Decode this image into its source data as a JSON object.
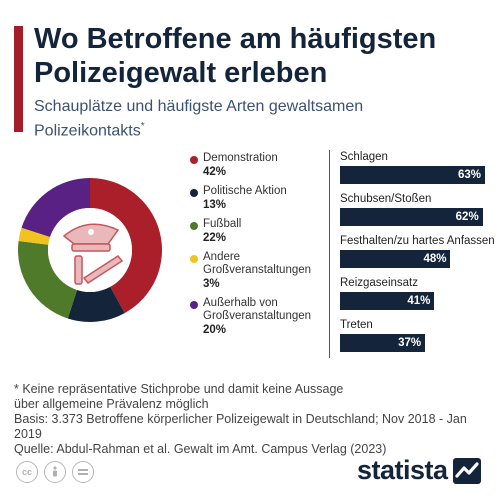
{
  "header": {
    "title": "Wo Betroffene am häufigsten Polizeigewalt erleben",
    "subtitle": "Schauplätze und häufigste Arten gewaltsamen Polizeikontakts",
    "subtitle_mark": "*"
  },
  "colors": {
    "accent": "#a41d2a",
    "navy": "#14243b",
    "demonstration": "#ab1f2b",
    "politische_aktion": "#14243b",
    "fussball": "#4e7a2a",
    "andere": "#f2c31f",
    "ausserhalb": "#5a2184",
    "icon": "#e9b8ba",
    "icon_stroke": "#c4575d"
  },
  "chart_data": [
    {
      "type": "pie",
      "style": "donut",
      "center_icon": "police-cap-baton-icon",
      "categories": [
        "Demonstration",
        "Politische Aktion",
        "Fußball",
        "Andere\nGroßveranstaltungen",
        "Außerhalb von\nGroßveranstaltungen"
      ],
      "values": [
        42,
        13,
        22,
        3,
        20
      ],
      "value_labels": [
        "42%",
        "13%",
        "22%",
        "3%",
        "20%"
      ],
      "legend_position": "right"
    },
    {
      "type": "bar",
      "orientation": "horizontal",
      "categories": [
        "Schlagen",
        "Schubsen/Stoßen",
        "Festhalten/zu hartes Anfassen",
        "Reizgaseinsatz",
        "Treten"
      ],
      "values": [
        63,
        62,
        48,
        41,
        37
      ],
      "value_labels": [
        "63%",
        "62%",
        "48%",
        "41%",
        "37%"
      ],
      "xlim": [
        0,
        63
      ]
    }
  ],
  "footnote": {
    "disclaimer": "* Keine repräsentative Stichprobe und damit keine Aussage\n   über allgemeine Prävalenz möglich",
    "basis": "Basis: 3.373 Betroffene körperlicher Polizeigewalt in Deutschland; Nov 2018 - Jan 2019",
    "source": "Quelle: Abdul-Rahman et al. Gewalt im Amt. Campus Verlag (2023)"
  },
  "branding": {
    "logo_text": "statista",
    "license_icons": [
      "cc-icon",
      "by-icon",
      "nd-icon"
    ]
  }
}
